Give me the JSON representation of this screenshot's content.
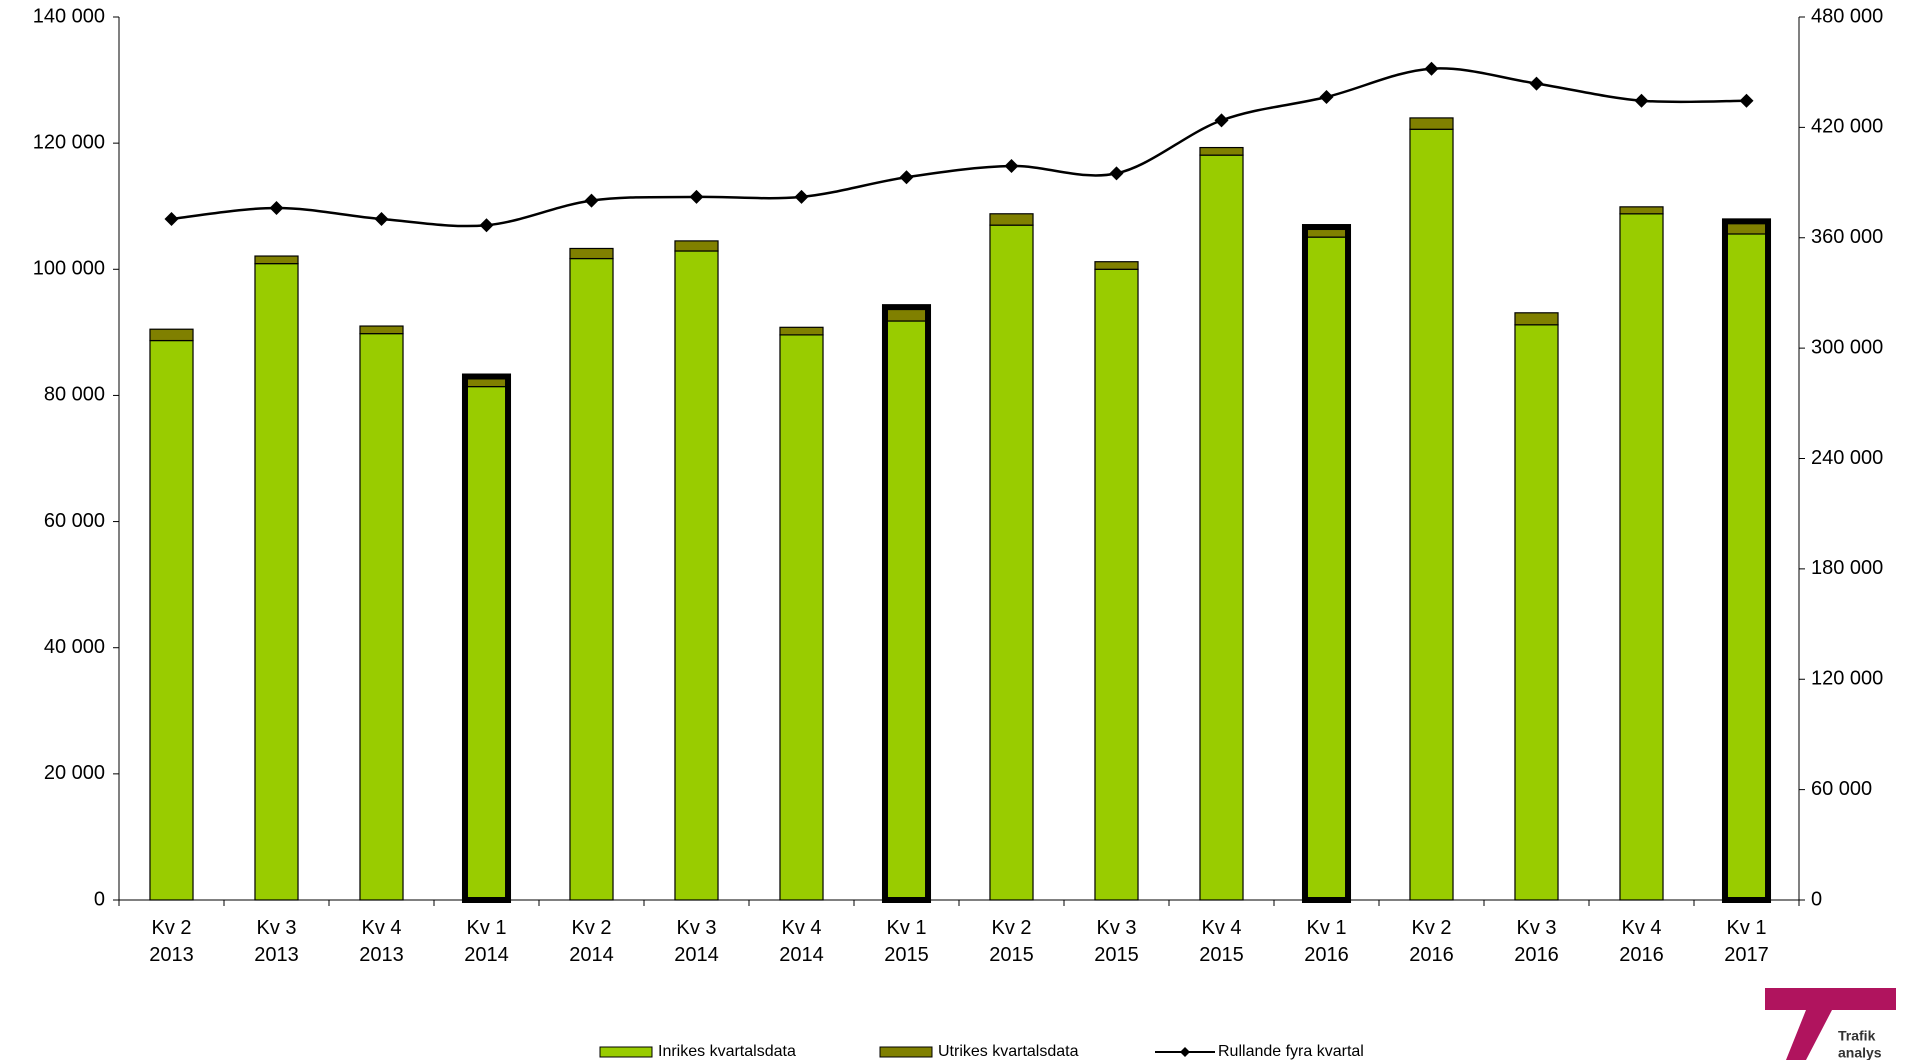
{
  "chart_data": {
    "type": "bar",
    "categories": [
      "Kv 2\n2013",
      "Kv 3\n2013",
      "Kv 4\n2013",
      "Kv 1\n2014",
      "Kv 2\n2014",
      "Kv 3\n2014",
      "Kv 4\n2014",
      "Kv 1\n2015",
      "Kv 2\n2015",
      "Kv 3\n2015",
      "Kv 4\n2015",
      "Kv 1\n2016",
      "Kv 2\n2016",
      "Kv 3\n2016",
      "Kv 4\n2016",
      "Kv 1\n2017"
    ],
    "series": [
      {
        "name": "Inrikes kvartalsdata",
        "color": "#99cc00",
        "stack": true,
        "values": [
          88700,
          100900,
          89800,
          81400,
          101700,
          102900,
          89600,
          91800,
          107000,
          100000,
          118100,
          105100,
          122200,
          91200,
          108800,
          105600
        ]
      },
      {
        "name": "Utrikes kvartalsdata",
        "color": "#808000",
        "stack": true,
        "values": [
          1800,
          1200,
          1200,
          1600,
          1600,
          1600,
          1200,
          2200,
          1800,
          1200,
          1200,
          1600,
          1800,
          1900,
          1100,
          2000
        ]
      },
      {
        "name": "Rullande fyra kvartal",
        "color": "#000000",
        "type": "line",
        "axis": "y2",
        "smooth": true,
        "values": [
          370200,
          376200,
          370200,
          366800,
          380200,
          382200,
          382200,
          392900,
          399000,
          395000,
          423800,
          436500,
          451900,
          443800,
          434500,
          434500
        ]
      }
    ],
    "highlight_indices": [
      3,
      7,
      11,
      15
    ],
    "ylim": [
      0,
      140000
    ],
    "yticks": [
      0,
      {
        "value": 20000,
        "label": "20 000"
      },
      {
        "value": 40000,
        "label": "40 000"
      },
      {
        "value": 60000,
        "label": "60 000"
      },
      {
        "value": 80000,
        "label": "80 000"
      },
      {
        "value": 100000,
        "label": "100 000"
      },
      {
        "value": 120000,
        "label": "120 000"
      },
      {
        "value": 140000,
        "label": "140 000"
      }
    ],
    "y2lim": [
      0,
      480000
    ],
    "y2ticks": [
      0,
      {
        "value": 60000,
        "label": "60 000"
      },
      {
        "value": 120000,
        "label": "120 000"
      },
      {
        "value": 180000,
        "label": "180 000"
      },
      {
        "value": 240000,
        "label": "240 000"
      },
      {
        "value": 300000,
        "label": "300 000"
      },
      {
        "value": 360000,
        "label": "360 000"
      },
      {
        "value": 420000,
        "label": "420 000"
      },
      {
        "value": 480000,
        "label": "480 000"
      }
    ],
    "grid": false,
    "legend": "bottom"
  },
  "logo": {
    "line1": "Trafik",
    "line2": "analys"
  }
}
